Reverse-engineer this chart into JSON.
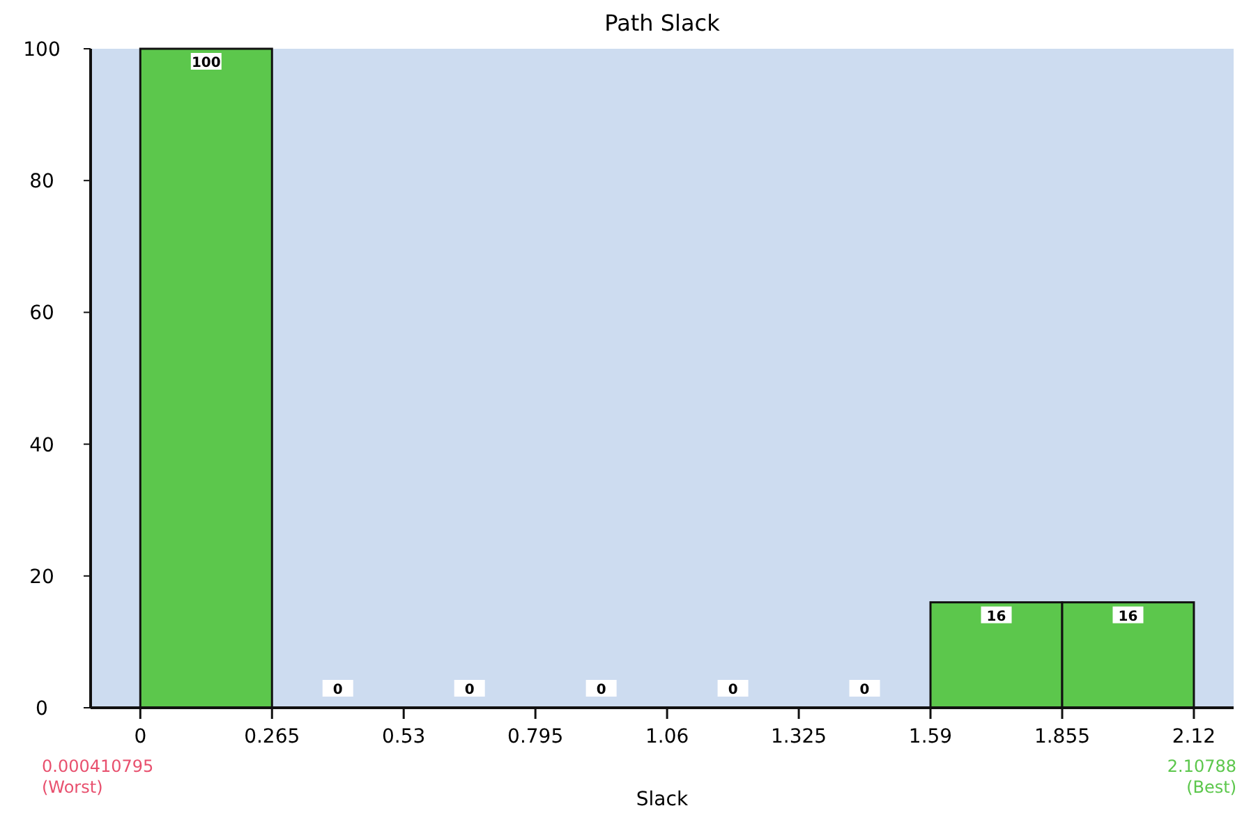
{
  "chart_data": {
    "type": "histogram",
    "title": "Path Slack",
    "xlabel": "Slack",
    "bins": [
      0,
      0.265,
      0.53,
      0.795,
      1.06,
      1.325,
      1.59,
      1.855,
      2.12
    ],
    "values": [
      100,
      0,
      0,
      0,
      0,
      0,
      16,
      16
    ],
    "color": "#5cc74c",
    "xlim": [
      -0.1,
      2.2
    ],
    "xticks": [
      0,
      0.265,
      0.53,
      0.795,
      1.06,
      1.325,
      1.59,
      1.855,
      2.12
    ],
    "ylim": [
      0,
      100
    ],
    "yticks": [
      0,
      20,
      40,
      60,
      80,
      100
    ],
    "data_labels": true,
    "grid": false,
    "annotations": [
      "0.000410795\n(Worst)",
      "2.10788\n(Best)"
    ]
  }
}
